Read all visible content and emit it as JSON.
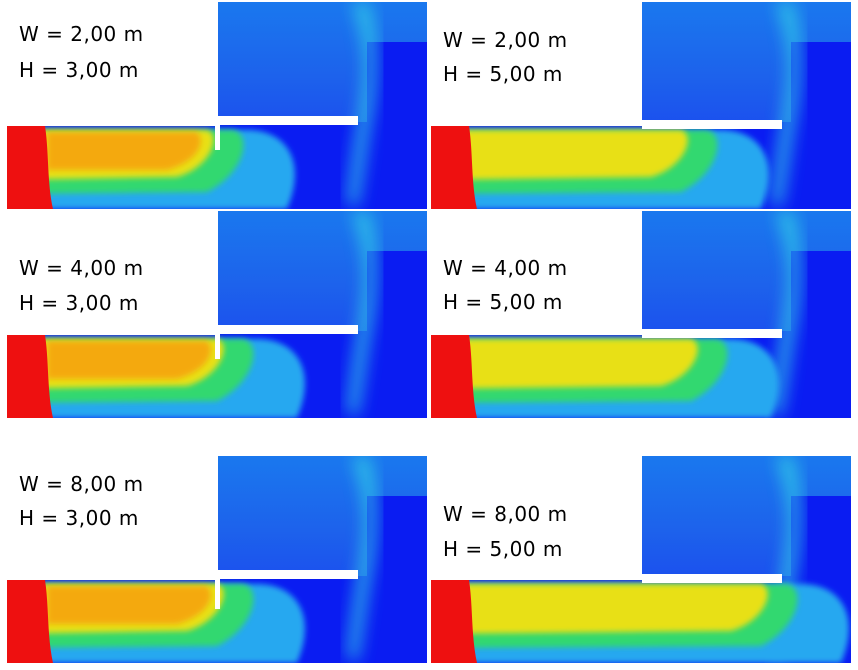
{
  "panels": [
    {
      "id": "p1",
      "w_label": "W = 2,00 m",
      "h_label": "H = 3,00 m",
      "w": 2,
      "h": 3
    },
    {
      "id": "p2",
      "w_label": "W = 2,00 m",
      "h_label": "H = 5,00 m",
      "w": 2,
      "h": 5
    },
    {
      "id": "p3",
      "w_label": "W = 4,00 m",
      "h_label": "H = 3,00 m",
      "w": 4,
      "h": 3
    },
    {
      "id": "p4",
      "w_label": "W = 4,00 m",
      "h_label": "H = 5,00 m",
      "w": 4,
      "h": 5
    },
    {
      "id": "p5",
      "w_label": "W = 8,00 m",
      "h_label": "H = 3,00 m",
      "w": 8,
      "h": 3
    },
    {
      "id": "p6",
      "w_label": "W = 8,00 m",
      "h_label": "H = 5,00 m",
      "w": 8,
      "h": 5
    }
  ],
  "colors": {
    "red": "#ee1010",
    "orange": "#f7a010",
    "yellow": "#e8e018",
    "lime": "#a6e630",
    "green": "#30d870",
    "cyan": "#30d0e6",
    "sky": "#28a8f0",
    "blue_light": "#1a78ee",
    "blue": "#1b50ee",
    "blue_deep": "#0a1cf2",
    "wall": "#ffffff"
  }
}
